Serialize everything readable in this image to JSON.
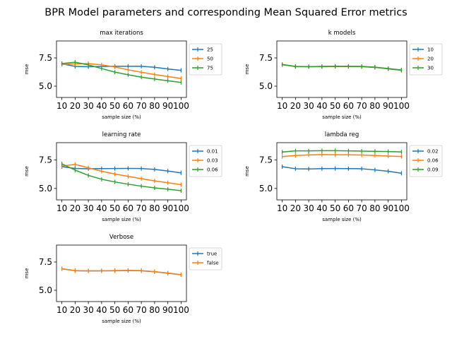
{
  "figure_title": "BPR Model parameters and corresponding Mean Squared Error metrics",
  "chart_data": [
    {
      "type": "line",
      "title": "max iterations",
      "xlabel": "sample size (%)",
      "ylabel": "mse",
      "x": [
        10,
        20,
        30,
        40,
        50,
        60,
        70,
        80,
        90,
        100
      ],
      "ylim": [
        4.0,
        9.0
      ],
      "yticks": [
        5.0,
        7.5
      ],
      "legend_position": "outside-right",
      "series": [
        {
          "name": "25",
          "color": "#1f77b4",
          "values": [
            6.98,
            6.75,
            6.72,
            6.74,
            6.76,
            6.76,
            6.76,
            6.67,
            6.52,
            6.4
          ]
        },
        {
          "name": "50",
          "color": "#ff7f0e",
          "values": [
            6.92,
            6.97,
            7.0,
            6.88,
            6.7,
            6.45,
            6.23,
            6.03,
            5.85,
            5.68
          ]
        },
        {
          "name": "75",
          "color": "#2ca02c",
          "values": [
            7.0,
            7.12,
            6.88,
            6.56,
            6.24,
            6.01,
            5.8,
            5.63,
            5.48,
            5.33
          ]
        }
      ]
    },
    {
      "type": "line",
      "title": "k models",
      "xlabel": "sample size (%)",
      "ylabel": "mse",
      "x": [
        10,
        20,
        30,
        40,
        50,
        60,
        70,
        80,
        90,
        100
      ],
      "ylim": [
        4.0,
        9.0
      ],
      "yticks": [
        5.0,
        7.5
      ],
      "legend_position": "outside-right",
      "series": [
        {
          "name": "10",
          "color": "#1f77b4",
          "values": [
            6.9,
            6.73,
            6.72,
            6.73,
            6.74,
            6.74,
            6.73,
            6.66,
            6.53,
            6.4
          ]
        },
        {
          "name": "20",
          "color": "#ff7f0e",
          "values": [
            6.91,
            6.74,
            6.73,
            6.74,
            6.75,
            6.75,
            6.74,
            6.67,
            6.55,
            6.42
          ]
        },
        {
          "name": "30",
          "color": "#2ca02c",
          "values": [
            6.92,
            6.75,
            6.73,
            6.75,
            6.76,
            6.76,
            6.75,
            6.68,
            6.56,
            6.43
          ]
        }
      ]
    },
    {
      "type": "line",
      "title": "learning rate",
      "xlabel": "sample size (%)",
      "ylabel": "mse",
      "x": [
        10,
        20,
        30,
        40,
        50,
        60,
        70,
        80,
        90,
        100
      ],
      "ylim": [
        4.0,
        9.0
      ],
      "yticks": [
        5.0,
        7.5
      ],
      "legend_position": "outside-right",
      "series": [
        {
          "name": "0.01",
          "color": "#1f77b4",
          "values": [
            6.9,
            6.75,
            6.72,
            6.73,
            6.74,
            6.75,
            6.74,
            6.66,
            6.52,
            6.36
          ]
        },
        {
          "name": "0.03",
          "color": "#ff7f0e",
          "values": [
            6.95,
            7.1,
            6.8,
            6.5,
            6.26,
            6.05,
            5.85,
            5.66,
            5.5,
            5.33
          ]
        },
        {
          "name": "0.06",
          "color": "#2ca02c",
          "values": [
            7.15,
            6.6,
            6.14,
            5.8,
            5.57,
            5.37,
            5.2,
            5.05,
            4.93,
            4.8
          ]
        }
      ]
    },
    {
      "type": "line",
      "title": "lambda reg",
      "xlabel": "sample size (%)",
      "ylabel": "mse",
      "x": [
        10,
        20,
        30,
        40,
        50,
        60,
        70,
        80,
        90,
        100
      ],
      "ylim": [
        4.0,
        9.0
      ],
      "yticks": [
        5.0,
        7.5
      ],
      "legend_position": "outside-right",
      "series": [
        {
          "name": "0.02",
          "color": "#1f77b4",
          "values": [
            6.9,
            6.72,
            6.7,
            6.73,
            6.74,
            6.73,
            6.72,
            6.62,
            6.5,
            6.33
          ]
        },
        {
          "name": "0.06",
          "color": "#ff7f0e",
          "values": [
            7.78,
            7.88,
            7.93,
            7.96,
            7.94,
            7.94,
            7.92,
            7.88,
            7.83,
            7.79
          ]
        },
        {
          "name": "0.09",
          "color": "#2ca02c",
          "values": [
            8.18,
            8.28,
            8.28,
            8.3,
            8.3,
            8.28,
            8.26,
            8.24,
            8.22,
            8.19
          ]
        }
      ]
    },
    {
      "type": "line",
      "title": "Verbose",
      "xlabel": "sample size (%)",
      "ylabel": "mse",
      "x": [
        10,
        20,
        30,
        40,
        50,
        60,
        70,
        80,
        90,
        100
      ],
      "ylim": [
        4.0,
        9.0
      ],
      "yticks": [
        5.0,
        7.5
      ],
      "legend_position": "outside-right",
      "series": [
        {
          "name": "true",
          "color": "#1f77b4",
          "values": [
            6.9,
            6.73,
            6.71,
            6.72,
            6.73,
            6.75,
            6.73,
            6.64,
            6.51,
            6.37
          ]
        },
        {
          "name": "false",
          "color": "#ff7f0e",
          "values": [
            6.91,
            6.74,
            6.72,
            6.73,
            6.74,
            6.76,
            6.74,
            6.65,
            6.52,
            6.38
          ]
        }
      ]
    }
  ]
}
